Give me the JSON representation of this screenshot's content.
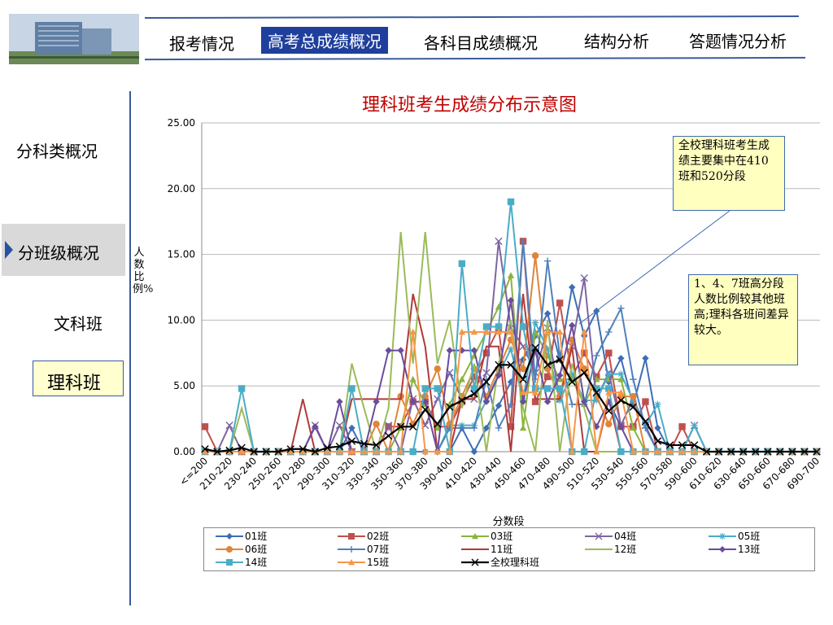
{
  "nav": [
    "报考情况",
    "高考总成绩概况",
    "各科目成绩概况",
    "结构分析",
    "答题情况分析"
  ],
  "side": {
    "item1": "分科类概况",
    "item2": "分班级概况",
    "item3": "文科班",
    "item4": "理科班"
  },
  "colors": {
    "accent": "#1f3f9c",
    "title_red": "#c00000",
    "callout_bg": "#ffffc0"
  },
  "callouts": {
    "one": "全校理科班考生成绩主要集中在410班和520分段",
    "two": "1、4、7班高分段人数比例较其他班高;理科各班间差异较大。"
  },
  "chart_data": {
    "type": "line",
    "title": "理科班考生成绩分布示意图",
    "ylabel": "人数比例%",
    "xlabel": "分数段",
    "ylim": [
      0,
      25
    ],
    "yticks": [
      "0.00",
      "5.00",
      "10.00",
      "15.00",
      "20.00",
      "25.00"
    ],
    "categories": [
      "<=200",
      "200-210",
      "210-220",
      "220-230",
      "230-240",
      "240-250",
      "250-260",
      "260-270",
      "270-280",
      "280-290",
      "290-300",
      "300-310",
      "310-320",
      "320-330",
      "330-340",
      "340-350",
      "350-360",
      "360-370",
      "370-380",
      "380-390",
      "390-400",
      "400-410",
      "410-420",
      "420-430",
      "430-440",
      "440-450",
      "450-460",
      "460-470",
      "470-480",
      "480-490",
      "490-500",
      "500-510",
      "510-520",
      "520-530",
      "530-540",
      "540-550",
      "550-560",
      "560-570",
      "570-580",
      "580-590",
      "590-600",
      "600-610",
      "610-620",
      "620-630",
      "630-640",
      "640-650",
      "650-660",
      "660-670",
      "670-680",
      "680-690",
      "690-700"
    ],
    "xtick_labels": [
      "<=200",
      "210-220",
      "230-240",
      "250-260",
      "270-280",
      "290-300",
      "310-320",
      "330-340",
      "350-360",
      "370-380",
      "390-400",
      "410-420",
      "430-440",
      "450-460",
      "470-480",
      "490-500",
      "510-520",
      "530-540",
      "550-560",
      "570-580",
      "590-600",
      "610-620",
      "630-640",
      "650-660",
      "670-680",
      "690-700"
    ],
    "series": [
      {
        "name": "01班",
        "color": "#3c6eb4",
        "marker": "diamond",
        "values": [
          0,
          0,
          0,
          0,
          0,
          0,
          0,
          0,
          0,
          0,
          0,
          0,
          1.8,
          0,
          0,
          0,
          0,
          0,
          0,
          0,
          0,
          1.8,
          0,
          1.8,
          3.5,
          5.3,
          7.0,
          8.8,
          10.5,
          7.0,
          12.5,
          8.8,
          10.7,
          5.3,
          7.1,
          3.5,
          7.1,
          1.8,
          0,
          0,
          0,
          0,
          0,
          0,
          0,
          0,
          0,
          0,
          0,
          0,
          0
        ]
      },
      {
        "name": "02班",
        "color": "#c0504d",
        "marker": "square",
        "values": [
          1.9,
          0,
          0,
          0,
          0,
          0,
          0,
          0,
          0,
          0,
          0,
          0,
          0,
          0,
          0,
          1.9,
          1.9,
          3.8,
          3.8,
          1.9,
          1.9,
          3.8,
          5.7,
          7.5,
          9.4,
          1.9,
          16.0,
          3.8,
          5.7,
          11.3,
          5.7,
          7.5,
          5.7,
          7.5,
          1.9,
          1.9,
          3.8,
          0,
          0,
          1.9,
          0,
          0,
          0,
          0,
          0,
          0,
          0,
          0,
          0,
          0,
          0
        ]
      },
      {
        "name": "03班",
        "color": "#8cb33e",
        "marker": "triangle",
        "values": [
          0,
          0,
          0,
          0,
          0,
          0,
          0,
          0,
          0,
          0,
          0,
          0,
          0,
          0,
          0,
          0,
          1.8,
          5.5,
          3.6,
          1.8,
          3.6,
          5.5,
          7.3,
          9.1,
          11.0,
          13.4,
          1.8,
          9.1,
          7.3,
          5.5,
          5.5,
          3.6,
          5.5,
          5.5,
          5.5,
          1.8,
          0,
          0,
          0,
          0,
          0,
          0,
          0,
          0,
          0,
          0,
          0,
          0,
          0,
          0,
          0
        ]
      },
      {
        "name": "04班",
        "color": "#7f64a2",
        "marker": "x",
        "values": [
          0,
          0,
          2.0,
          0,
          0,
          0,
          0,
          0,
          0,
          2.0,
          0,
          2.0,
          0,
          0,
          0,
          2.0,
          0,
          4.0,
          2.0,
          4.0,
          6.0,
          4.0,
          4.0,
          6.0,
          16.0,
          9.4,
          8.0,
          6.0,
          9.4,
          4.0,
          8.0,
          13.2,
          4.0,
          6.0,
          2.0,
          4.0,
          2.0,
          0,
          0,
          0,
          2.0,
          0,
          0,
          0,
          0,
          0,
          0,
          0,
          0,
          0,
          0
        ]
      },
      {
        "name": "05班",
        "color": "#4bacc6",
        "marker": "star",
        "values": [
          0,
          0,
          0,
          0,
          0,
          0,
          0,
          0,
          0,
          0,
          0,
          0,
          0,
          0,
          0,
          0,
          0,
          0,
          0,
          0,
          2.0,
          2.0,
          2.0,
          3.9,
          5.9,
          7.8,
          3.9,
          9.8,
          7.8,
          3.9,
          5.9,
          3.9,
          3.9,
          5.9,
          5.9,
          3.9,
          2.0,
          3.6,
          0,
          0,
          2.0,
          0,
          0,
          0,
          0,
          0,
          0,
          0,
          0,
          0,
          0
        ]
      },
      {
        "name": "06班",
        "color": "#e0843a",
        "marker": "circle",
        "values": [
          0,
          0,
          0,
          0,
          0,
          0,
          0,
          0,
          0,
          0,
          0,
          0,
          0,
          0,
          2.1,
          0,
          4.2,
          2.1,
          4.2,
          6.3,
          2.1,
          4.2,
          6.3,
          4.2,
          6.3,
          8.5,
          6.3,
          14.9,
          6.3,
          4.2,
          8.5,
          6.3,
          4.2,
          2.1,
          4.2,
          4.2,
          0,
          0,
          0,
          0,
          0,
          0,
          0,
          0,
          0,
          0,
          0,
          0,
          0,
          0,
          0
        ]
      },
      {
        "name": "07班",
        "color": "#4f81bd",
        "marker": "plus",
        "values": [
          0,
          0,
          0,
          0,
          0,
          0,
          0,
          0,
          0,
          0,
          0,
          0,
          0,
          0,
          0,
          0,
          0,
          0,
          0,
          0,
          1.8,
          1.8,
          1.8,
          5.5,
          1.8,
          3.6,
          16.0,
          5.5,
          14.5,
          7.3,
          3.6,
          3.6,
          7.3,
          9.1,
          10.9,
          5.5,
          1.8,
          0,
          0,
          0,
          0,
          0,
          0,
          0,
          0,
          0,
          0,
          0,
          0,
          0,
          0
        ]
      },
      {
        "name": "11班",
        "color": "#b03a3a",
        "marker": "none",
        "values": [
          0,
          0,
          0,
          0,
          0,
          0,
          0,
          0,
          4.0,
          0,
          0,
          0,
          4.0,
          4.0,
          4.0,
          4.0,
          4.0,
          12.0,
          8.0,
          0,
          0,
          4.0,
          4.0,
          8.0,
          8.0,
          0,
          12.0,
          4.0,
          4.0,
          4.0,
          8.0,
          0,
          0,
          4.0,
          0,
          0,
          0,
          0,
          0,
          0,
          0,
          0,
          0,
          0,
          0,
          0,
          0,
          0,
          0,
          0,
          0
        ]
      },
      {
        "name": "12班",
        "color": "#9bbb59",
        "marker": "none",
        "values": [
          0,
          0,
          0,
          3.3,
          0,
          0,
          0,
          0,
          0,
          0,
          0,
          0,
          6.7,
          3.3,
          0,
          3.3,
          16.7,
          6.7,
          16.7,
          6.7,
          10.0,
          3.3,
          6.7,
          0,
          6.7,
          10.0,
          3.3,
          0,
          10.0,
          0,
          6.7,
          3.3,
          0,
          0,
          0,
          0,
          0,
          0,
          0,
          0,
          0,
          0,
          0,
          0,
          0,
          0,
          0,
          0,
          0,
          0,
          0
        ]
      },
      {
        "name": "13班",
        "color": "#6a4c9c",
        "marker": "diamond",
        "values": [
          0,
          0,
          0,
          0,
          0,
          0,
          0,
          0,
          0,
          1.9,
          0,
          3.8,
          0,
          0,
          3.8,
          7.7,
          7.7,
          3.8,
          3.8,
          0,
          7.7,
          7.7,
          7.7,
          3.8,
          5.8,
          11.5,
          3.8,
          7.7,
          3.8,
          5.8,
          9.6,
          3.8,
          1.9,
          3.8,
          1.9,
          0,
          0,
          0,
          0,
          0,
          0,
          0,
          0,
          0,
          0,
          0,
          0,
          0,
          0,
          0,
          0
        ]
      },
      {
        "name": "14班",
        "color": "#4bacc6",
        "marker": "square",
        "values": [
          0,
          0,
          0,
          4.8,
          0,
          0,
          0,
          0,
          0,
          0,
          0,
          0,
          4.8,
          0,
          0,
          0,
          0,
          0,
          4.8,
          4.8,
          0,
          14.3,
          4.8,
          9.5,
          9.5,
          19.0,
          9.5,
          4.8,
          4.8,
          4.8,
          0,
          0,
          4.8,
          4.8,
          0,
          0,
          0,
          0,
          0,
          0,
          0,
          0,
          0,
          0,
          0,
          0,
          0,
          0,
          0,
          0,
          0
        ]
      },
      {
        "name": "15班",
        "color": "#f79646",
        "marker": "triangle",
        "values": [
          0,
          0,
          0,
          0,
          0,
          0,
          0,
          0,
          0,
          0,
          0,
          0,
          0,
          0,
          0,
          0,
          0,
          9.1,
          0,
          0,
          0,
          9.1,
          9.1,
          9.1,
          9.1,
          9.1,
          4.5,
          4.5,
          9.1,
          9.1,
          0,
          9.1,
          0,
          4.5,
          4.5,
          0,
          0,
          0,
          0,
          0,
          0,
          0,
          0,
          0,
          0,
          0,
          0,
          0,
          0,
          0,
          0
        ]
      },
      {
        "name": "全校理科班",
        "color": "#000000",
        "marker": "x",
        "width": 2.2,
        "values": [
          0.2,
          0,
          0.1,
          0.3,
          0,
          0,
          0,
          0.2,
          0.2,
          0,
          0.3,
          0.4,
          0.8,
          0.6,
          0.5,
          1.2,
          1.9,
          1.9,
          3.2,
          2.1,
          3.4,
          3.9,
          4.4,
          5.3,
          6.6,
          6.6,
          5.5,
          7.9,
          6.6,
          7.0,
          5.3,
          6.0,
          4.5,
          3.1,
          3.9,
          3.4,
          2.3,
          0.8,
          0.5,
          0.5,
          0.5,
          0,
          0,
          0,
          0,
          0,
          0,
          0,
          0,
          0,
          0
        ]
      }
    ]
  }
}
